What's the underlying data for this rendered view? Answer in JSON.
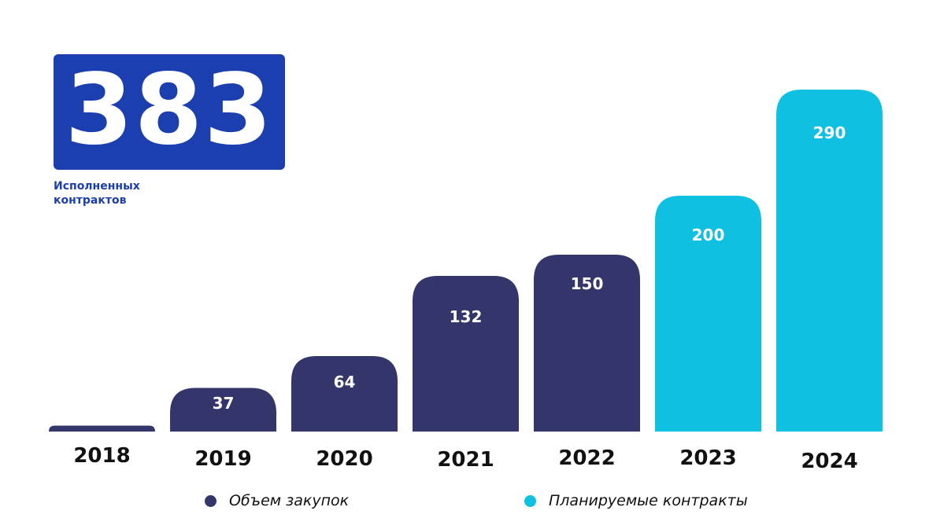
{
  "stat": {
    "value": "383",
    "caption_line1": "Исполненных",
    "caption_line2": "контрактов"
  },
  "colors": {
    "accent": "#1c3fb0",
    "actual": "#33356b",
    "planned": "#10c0e0"
  },
  "chart_data": {
    "type": "bar",
    "categories": [
      "2018",
      "2019",
      "2020",
      "2021",
      "2022",
      "2023",
      "2024"
    ],
    "values": [
      5,
      37,
      64,
      132,
      150,
      200,
      290
    ],
    "data_labels": [
      "",
      "37",
      "64",
      "132",
      "150",
      "200",
      "290"
    ],
    "groups": [
      "actual",
      "actual",
      "actual",
      "actual",
      "actual",
      "planned",
      "planned"
    ],
    "legend": [
      {
        "key": "actual",
        "label": "Объем закупок"
      },
      {
        "key": "planned",
        "label": "Планируемые контракты"
      }
    ],
    "legend_position": "bottom",
    "grid": false,
    "ylim": [
      0,
      290
    ]
  }
}
